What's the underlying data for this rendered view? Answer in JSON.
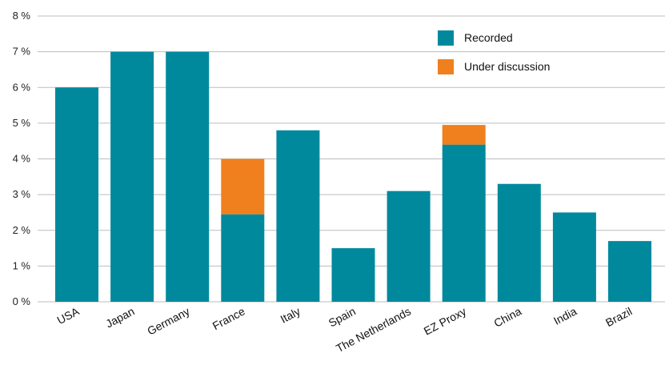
{
  "chart_data": {
    "type": "bar",
    "stacked": true,
    "categories": [
      "USA",
      "Japan",
      "Germany",
      "France",
      "Italy",
      "Spain",
      "The Netherlands",
      "EZ Proxy",
      "China",
      "India",
      "Brazil"
    ],
    "series": [
      {
        "name": "Recorded",
        "color": "#00899C",
        "values": [
          6.0,
          7.0,
          7.0,
          2.45,
          4.8,
          1.5,
          3.1,
          4.4,
          3.3,
          2.5,
          1.7
        ]
      },
      {
        "name": "Under discussion",
        "color": "#F07F1E",
        "values": [
          0,
          0,
          0,
          1.55,
          0,
          0,
          0,
          0.55,
          0,
          0,
          0
        ]
      }
    ],
    "ylim": [
      0,
      8
    ],
    "yticks": [
      0,
      1,
      2,
      3,
      4,
      5,
      6,
      7,
      8
    ],
    "ytick_labels": [
      "0 %",
      "1 %",
      "2 %",
      "3 %",
      "4 %",
      "5 %",
      "6 %",
      "7 %",
      "8 %"
    ],
    "grid": true,
    "legend_position": "top-right"
  }
}
